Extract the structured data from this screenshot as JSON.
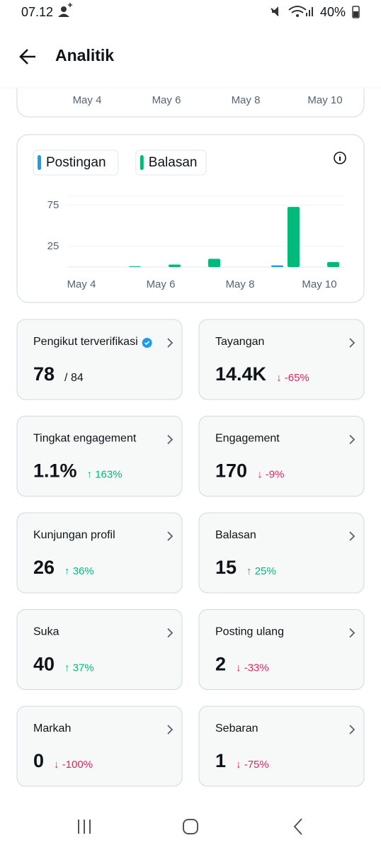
{
  "status_bar": {
    "time": "07.12",
    "battery": "40%"
  },
  "header": {
    "title": "Analitik"
  },
  "top_card": {
    "x_labels": [
      "May 4",
      "May 6",
      "May 8",
      "May 10"
    ]
  },
  "chart_data": {
    "type": "bar",
    "categories": [
      "May 4",
      null,
      "May 6",
      null,
      "May 8",
      null,
      "May 10"
    ],
    "series": [
      {
        "name": "Postingan",
        "color": "#1d9bf0",
        "values": [
          0,
          0,
          0,
          0,
          0,
          2,
          0
        ]
      },
      {
        "name": "Balasan",
        "color": "#00ba7c",
        "values": [
          0,
          1,
          3,
          10,
          0,
          73,
          6
        ]
      }
    ],
    "ylim": [
      0,
      86
    ],
    "yticks": [
      25,
      75
    ],
    "grid": true
  },
  "cards": [
    {
      "label": "Pengikut terverifikasi",
      "value": "78",
      "sub": "/ 84"
    },
    {
      "label": "Tayangan",
      "value": "14.4K",
      "delta": "↓ -65%"
    },
    {
      "label": "Tingkat engagement",
      "value": "1.1%",
      "delta": "↑ 163%"
    },
    {
      "label": "Engagement",
      "value": "170",
      "delta": "↓ -9%"
    },
    {
      "label": "Kunjungan profil",
      "value": "26",
      "delta": "↑ 36%"
    },
    {
      "label": "Balasan",
      "value": "15",
      "delta": "↑ 25%"
    },
    {
      "label": "Suka",
      "value": "40",
      "delta": "↑ 37%"
    },
    {
      "label": "Posting ulang",
      "value": "2",
      "delta": "↓ -33%"
    },
    {
      "label": "Markah",
      "value": "0",
      "delta": "↓ -100%"
    },
    {
      "label": "Sebaran",
      "value": "1",
      "delta": "↓ -75%"
    }
  ]
}
